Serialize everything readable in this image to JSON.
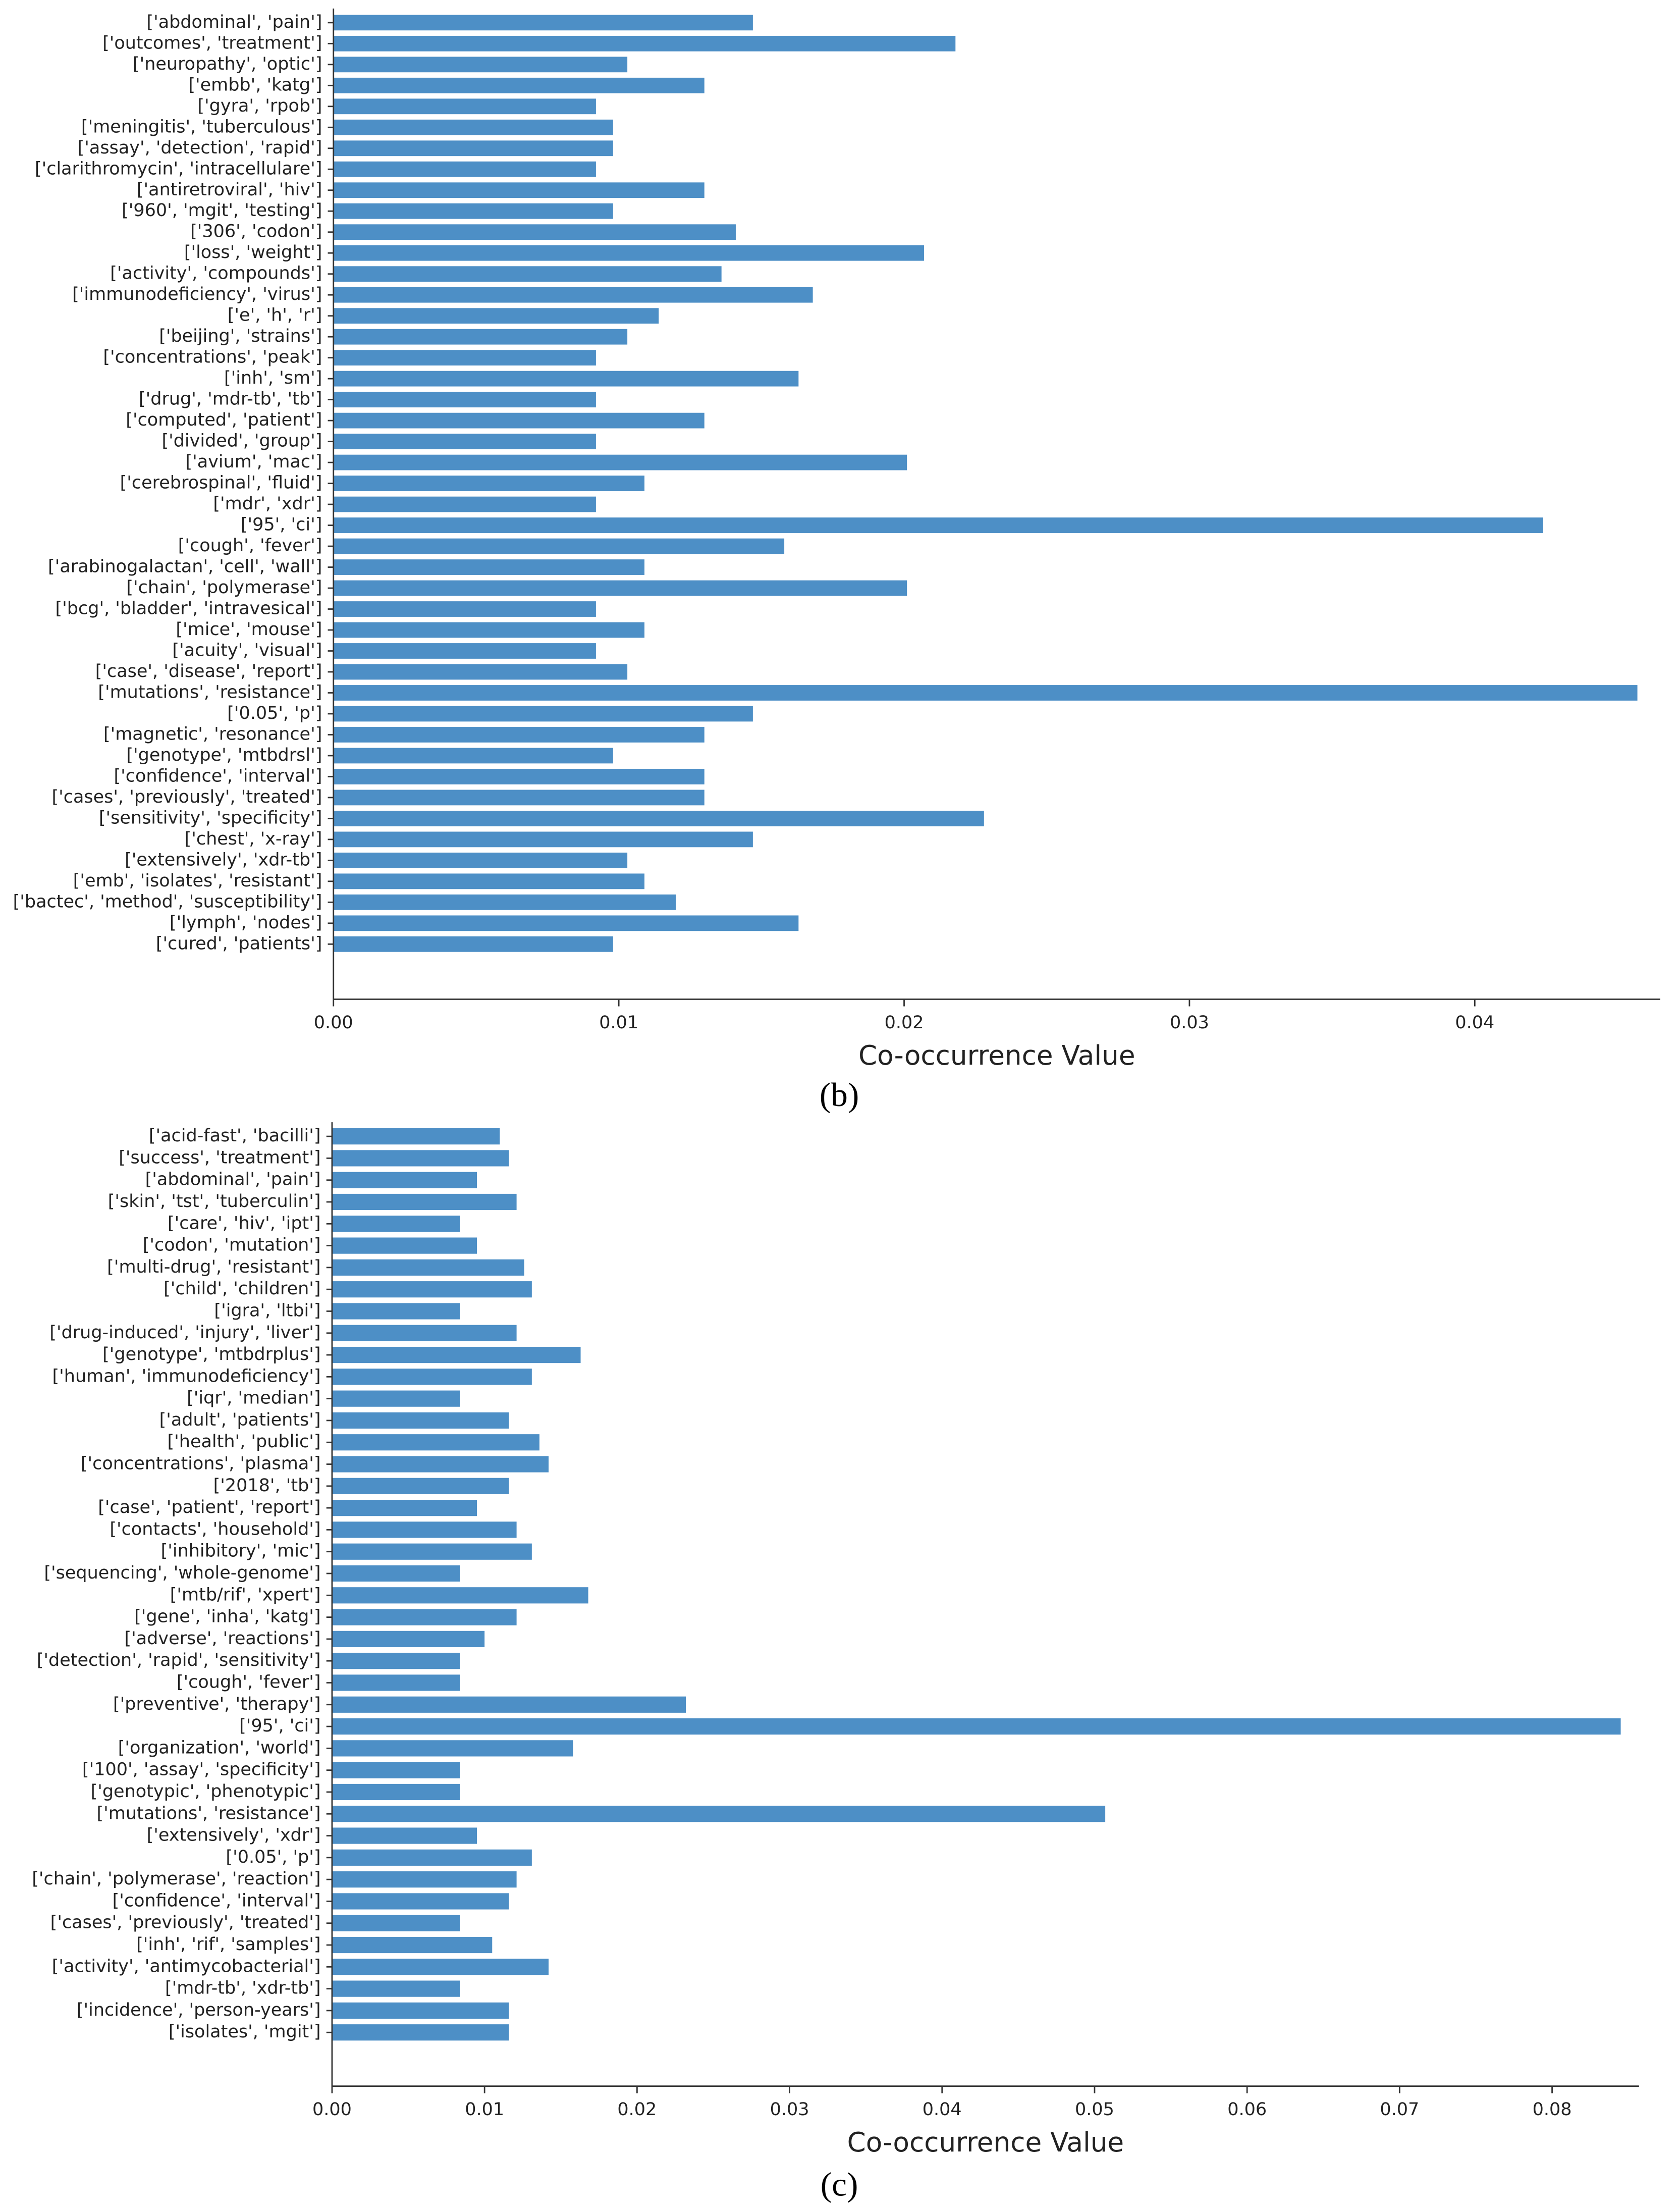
{
  "chart_data": [
    {
      "type": "barh",
      "caption": "(b)",
      "xlabel": "Co-occurrence Value",
      "color": "#4d8fc6",
      "categories": [
        "['abdominal', 'pain']",
        "['outcomes', 'treatment']",
        "['neuropathy', 'optic']",
        "['embb', 'katg']",
        "['gyra', 'rpob']",
        "['meningitis', 'tuberculous']",
        "['assay', 'detection', 'rapid']",
        "['clarithromycin', 'intracellulare']",
        "['antiretroviral', 'hiv']",
        "['960', 'mgit', 'testing']",
        "['306', 'codon']",
        "['loss', 'weight']",
        "['activity', 'compounds']",
        "['immunodeficiency', 'virus']",
        "['e', 'h', 'r']",
        "['beijing', 'strains']",
        "['concentrations', 'peak']",
        "['inh', 'sm']",
        "['drug', 'mdr-tb', 'tb']",
        "['computed', 'patient']",
        "['divided', 'group']",
        "['avium', 'mac']",
        "['cerebrospinal', 'fluid']",
        "['mdr', 'xdr']",
        "['95', 'ci']",
        "['cough', 'fever']",
        "['arabinogalactan', 'cell', 'wall']",
        "['chain', 'polymerase']",
        "['bcg', 'bladder', 'intravesical']",
        "['mice', 'mouse']",
        "['acuity', 'visual']",
        "['case', 'disease', 'report']",
        "['mutations', 'resistance']",
        "['0.05', 'p']",
        "['magnetic', 'resonance']",
        "['genotype', 'mtbdrsl']",
        "['confidence', 'interval']",
        "['cases', 'previously', 'treated']",
        "['sensitivity', 'specificity']",
        "['chest', 'x-ray']",
        "['extensively', 'xdr-tb']",
        "['emb', 'isolates', 'resistant']",
        "['bactec', 'method', 'susceptibility']",
        "['lymph', 'nodes']",
        "['cured', 'patients']"
      ],
      "values": [
        0.0147,
        0.0218,
        0.0103,
        0.013,
        0.0092,
        0.0098,
        0.0098,
        0.0092,
        0.013,
        0.0098,
        0.0141,
        0.0207,
        0.0136,
        0.0168,
        0.0114,
        0.0103,
        0.0092,
        0.0163,
        0.0092,
        0.013,
        0.0092,
        0.0201,
        0.0109,
        0.0092,
        0.0424,
        0.0158,
        0.0109,
        0.0201,
        0.0092,
        0.0109,
        0.0092,
        0.0103,
        0.0457,
        0.0147,
        0.013,
        0.0098,
        0.013,
        0.013,
        0.0228,
        0.0147,
        0.0103,
        0.0109,
        0.012,
        0.0163,
        0.0098
      ],
      "xlim": [
        0,
        0.0465
      ],
      "xticks": [
        {
          "value": 0,
          "label": "0.00"
        },
        {
          "value": 0.01,
          "label": "0.01"
        },
        {
          "value": 0.02,
          "label": "0.02"
        },
        {
          "value": 0.03,
          "label": "0.03"
        },
        {
          "value": 0.04,
          "label": "0.04"
        }
      ]
    },
    {
      "type": "barh",
      "caption": "(c)",
      "xlabel": "Co-occurrence Value",
      "color": "#4d8fc6",
      "categories": [
        "['acid-fast', 'bacilli']",
        "['success', 'treatment']",
        "['abdominal', 'pain']",
        "['skin', 'tst', 'tuberculin']",
        "['care', 'hiv', 'ipt']",
        "['codon', 'mutation']",
        "['multi-drug', 'resistant']",
        "['child', 'children']",
        "['igra', 'ltbi']",
        "['drug-induced', 'injury', 'liver']",
        "['genotype', 'mtbdrplus']",
        "['human', 'immunodeficiency']",
        "['iqr', 'median']",
        "['adult', 'patients']",
        "['health', 'public']",
        "['concentrations', 'plasma']",
        "['2018', 'tb']",
        "['case', 'patient', 'report']",
        "['contacts', 'household']",
        "['inhibitory', 'mic']",
        "['sequencing', 'whole-genome']",
        "['mtb/rif', 'xpert']",
        "['gene', 'inha', 'katg']",
        "['adverse', 'reactions']",
        "['detection', 'rapid', 'sensitivity']",
        "['cough', 'fever']",
        "['preventive', 'therapy']",
        "['95', 'ci']",
        "['organization', 'world']",
        "['100', 'assay', 'specificity']",
        "['genotypic', 'phenotypic']",
        "['mutations', 'resistance']",
        "['extensively', 'xdr']",
        "['0.05', 'p']",
        "['chain', 'polymerase', 'reaction']",
        "['confidence', 'interval']",
        "['cases', 'previously', 'treated']",
        "['inh', 'rif', 'samples']",
        "['activity', 'antimycobacterial']",
        "['mdr-tb', 'xdr-tb']",
        "['incidence', 'person-years']",
        "['isolates', 'mgit']"
      ],
      "values": [
        0.011,
        0.0116,
        0.0095,
        0.0121,
        0.0084,
        0.0095,
        0.0126,
        0.0131,
        0.0084,
        0.0121,
        0.0163,
        0.0131,
        0.0084,
        0.0116,
        0.0136,
        0.0142,
        0.0116,
        0.0095,
        0.0121,
        0.0131,
        0.0084,
        0.0168,
        0.0121,
        0.01,
        0.0084,
        0.0084,
        0.0232,
        0.0845,
        0.0158,
        0.0084,
        0.0084,
        0.0507,
        0.0095,
        0.0131,
        0.0121,
        0.0116,
        0.0084,
        0.0105,
        0.0142,
        0.0084,
        0.0116,
        0.0116
      ],
      "xlim": [
        0,
        0.0857
      ],
      "xticks": [
        {
          "value": 0,
          "label": "0.00"
        },
        {
          "value": 0.01,
          "label": "0.01"
        },
        {
          "value": 0.02,
          "label": "0.02"
        },
        {
          "value": 0.03,
          "label": "0.03"
        },
        {
          "value": 0.04,
          "label": "0.04"
        },
        {
          "value": 0.05,
          "label": "0.05"
        },
        {
          "value": 0.06,
          "label": "0.06"
        },
        {
          "value": 0.07,
          "label": "0.07"
        },
        {
          "value": 0.08,
          "label": "0.08"
        }
      ]
    }
  ]
}
